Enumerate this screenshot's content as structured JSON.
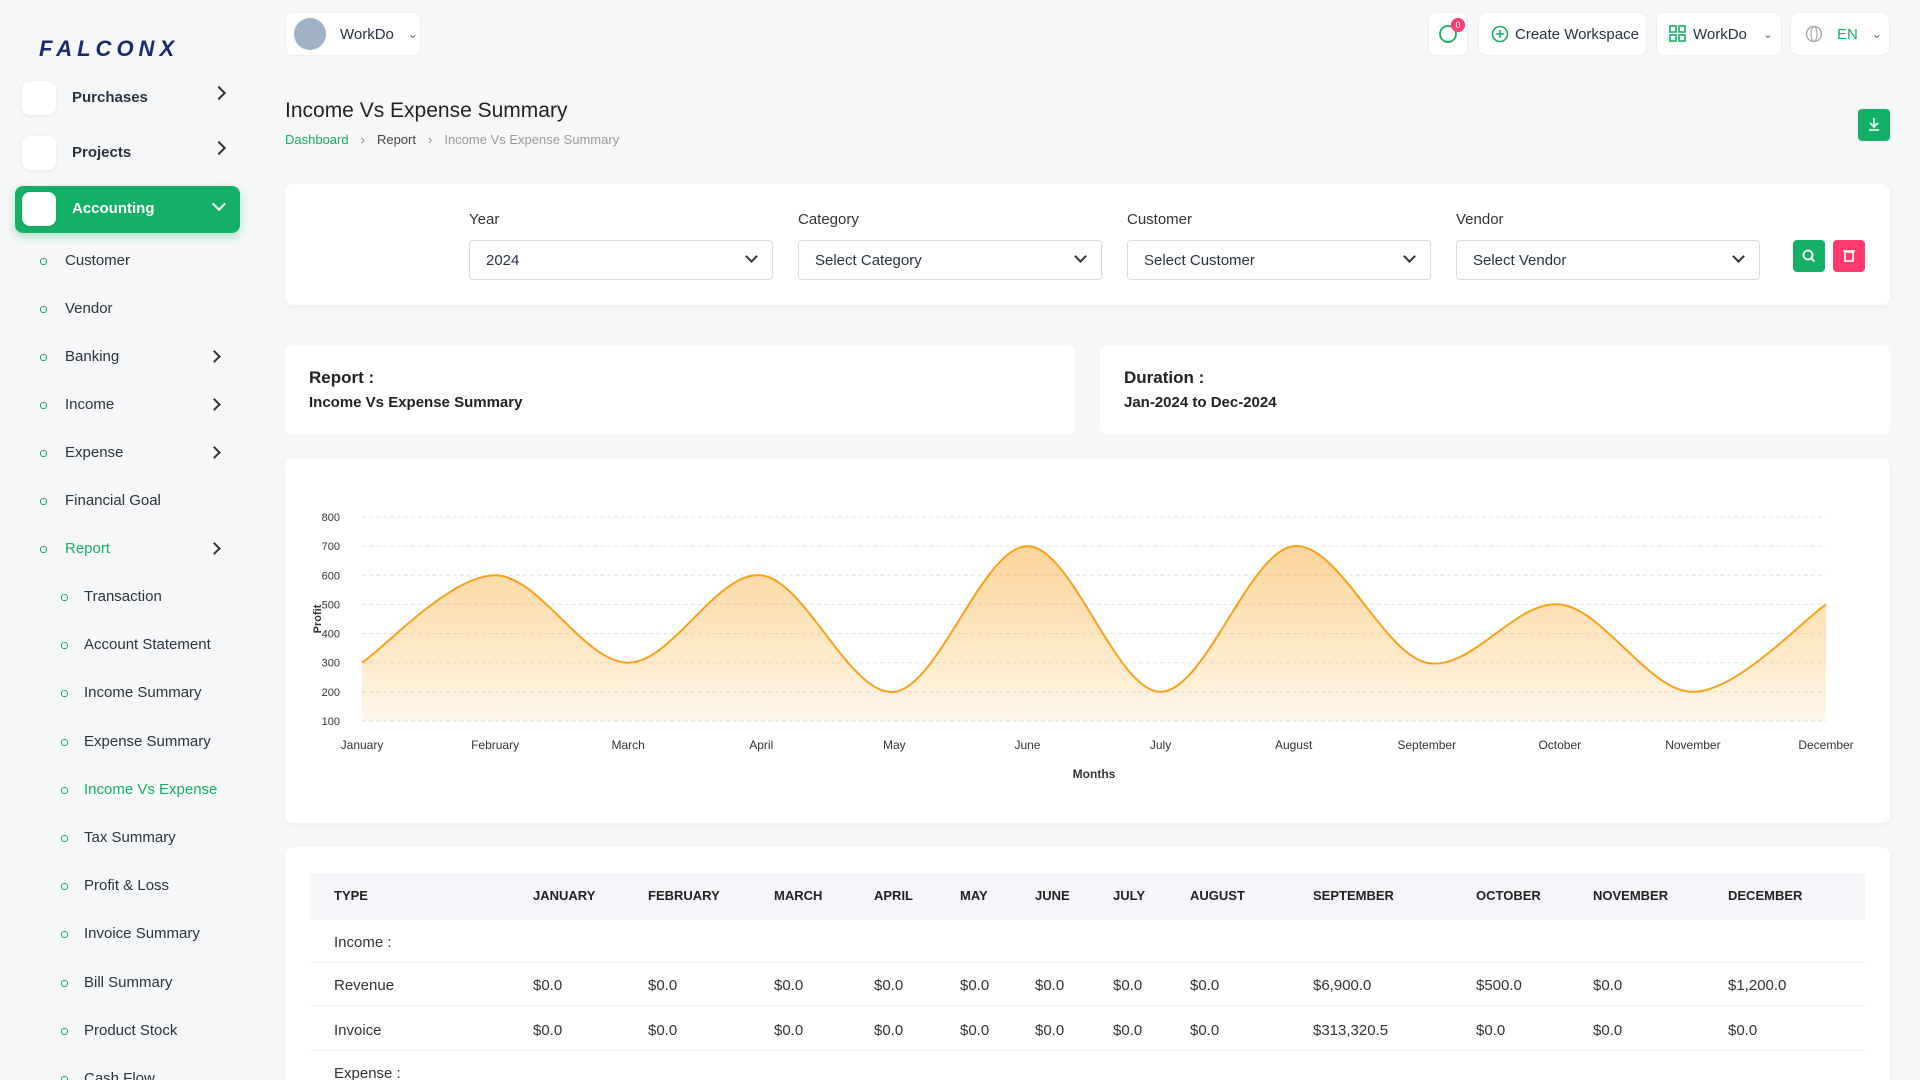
{
  "sidebar": {
    "logo": "FALCONX",
    "menu": [
      "Purchases",
      "Projects",
      "Accounting"
    ],
    "accounting_items": [
      "Customer",
      "Vendor",
      "Banking",
      "Income",
      "Expense",
      "Financial Goal",
      "Report"
    ],
    "report_items": [
      "Transaction",
      "Account Statement",
      "Income Summary",
      "Expense Summary",
      "Income Vs Expense",
      "Tax Summary",
      "Profit & Loss",
      "Invoice Summary",
      "Bill Summary",
      "Product Stock",
      "Cash Flow"
    ]
  },
  "header": {
    "workspace": "WorkDo",
    "notifications": "0",
    "create_workspace": "Create Workspace",
    "workspace_menu": "WorkDo",
    "language": "EN"
  },
  "page": {
    "title": "Income Vs Expense Summary",
    "breadcrumb": [
      "Dashboard",
      "Report",
      "Income Vs Expense Summary"
    ]
  },
  "filters": [
    {
      "label": "Year",
      "value": "2024"
    },
    {
      "label": "Category",
      "value": "Select Category"
    },
    {
      "label": "Customer",
      "value": "Select Customer"
    },
    {
      "label": "Vendor",
      "value": "Select Vendor"
    }
  ],
  "report_info": [
    {
      "label": "Report :",
      "value": "Income Vs Expense Summary"
    },
    {
      "label": "Duration :",
      "value": "Jan-2024 to Dec-2024"
    }
  ],
  "chart_data": {
    "type": "area",
    "categories": [
      "January",
      "February",
      "March",
      "April",
      "May",
      "June",
      "July",
      "August",
      "September",
      "October",
      "November",
      "December"
    ],
    "values": [
      300,
      600,
      300,
      600,
      200,
      700,
      200,
      700,
      300,
      500,
      200,
      500
    ],
    "color": "#f7a21b",
    "xlabel": "Months",
    "ylabel": "Profit",
    "ylim": [
      100,
      800
    ],
    "yticks": [
      100,
      200,
      300,
      400,
      500,
      600,
      700,
      800
    ],
    "grid": true
  },
  "table": {
    "header": [
      "TYPE",
      "JANUARY",
      "FEBRUARY",
      "MARCH",
      "APRIL",
      "MAY",
      "JUNE",
      "JULY",
      "AUGUST",
      "SEPTEMBER",
      "OCTOBER",
      "NOVEMBER",
      "DECEMBER"
    ],
    "rows": [
      [
        "Income :"
      ],
      [
        "Revenue",
        "$0.0",
        "$0.0",
        "$0.0",
        "$0.0",
        "$0.0",
        "$0.0",
        "$0.0",
        "$0.0",
        "$6,900.0",
        "$500.0",
        "$0.0",
        "$1,200.0"
      ],
      [
        "Invoice",
        "$0.0",
        "$0.0",
        "$0.0",
        "$0.0",
        "$0.0",
        "$0.0",
        "$0.0",
        "$0.0",
        "$313,320.5",
        "$0.0",
        "$0.0",
        "$0.0"
      ],
      [
        "Expense :"
      ]
    ]
  }
}
